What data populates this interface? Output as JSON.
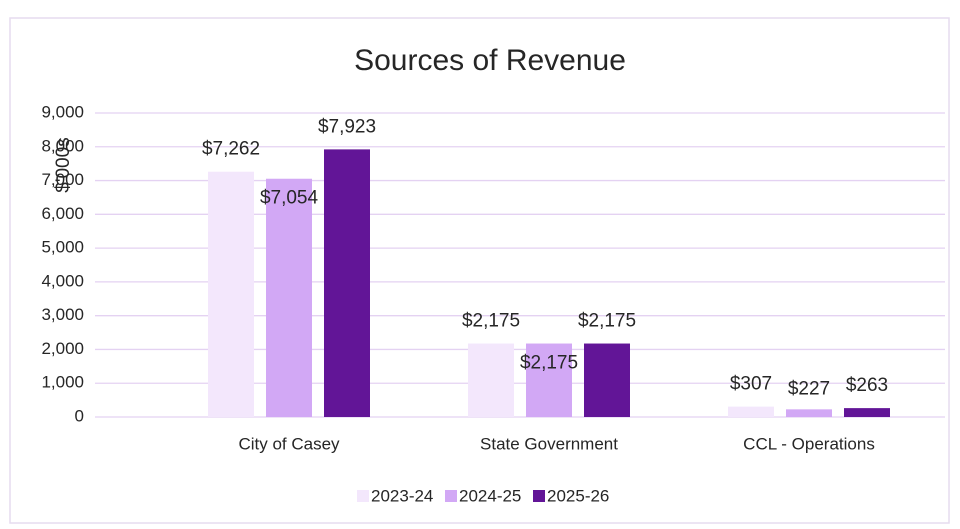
{
  "chart_data": {
    "type": "bar",
    "title": "Sources of Revenue",
    "y_label": "$'000s",
    "categories": [
      "City of Casey",
      "State Government",
      "CCL - Operations"
    ],
    "series": [
      {
        "name": "2023-24",
        "color": "#f3e7fc",
        "values": [
          7262,
          2175,
          307
        ],
        "value_labels": [
          "$7,262",
          "$2,175",
          "$307"
        ]
      },
      {
        "name": "2024-25",
        "color": "#d2a8f5",
        "values": [
          7054,
          2175,
          227
        ],
        "value_labels": [
          "$7,054",
          "$2,175",
          "$227"
        ]
      },
      {
        "name": "2025-26",
        "color": "#621597",
        "values": [
          7923,
          2175,
          263
        ],
        "value_labels": [
          "$7,923",
          "$2,175",
          "$263"
        ]
      }
    ],
    "ylim": [
      0,
      9000
    ],
    "yticks": [
      0,
      {
        "value": 1000,
        "label": "1,000"
      },
      {
        "value": 2000,
        "label": "2,000"
      },
      {
        "value": 3000,
        "label": "3,000"
      },
      {
        "value": 4000,
        "label": "4,000"
      },
      {
        "value": 5000,
        "label": "5,000"
      },
      {
        "value": 6000,
        "label": "6,000"
      },
      {
        "value": 7000,
        "label": "7,000"
      },
      {
        "value": 8000,
        "label": "8,000"
      },
      {
        "value": 9000,
        "label": "9,000"
      }
    ],
    "grid": true,
    "legend": "bottom"
  }
}
